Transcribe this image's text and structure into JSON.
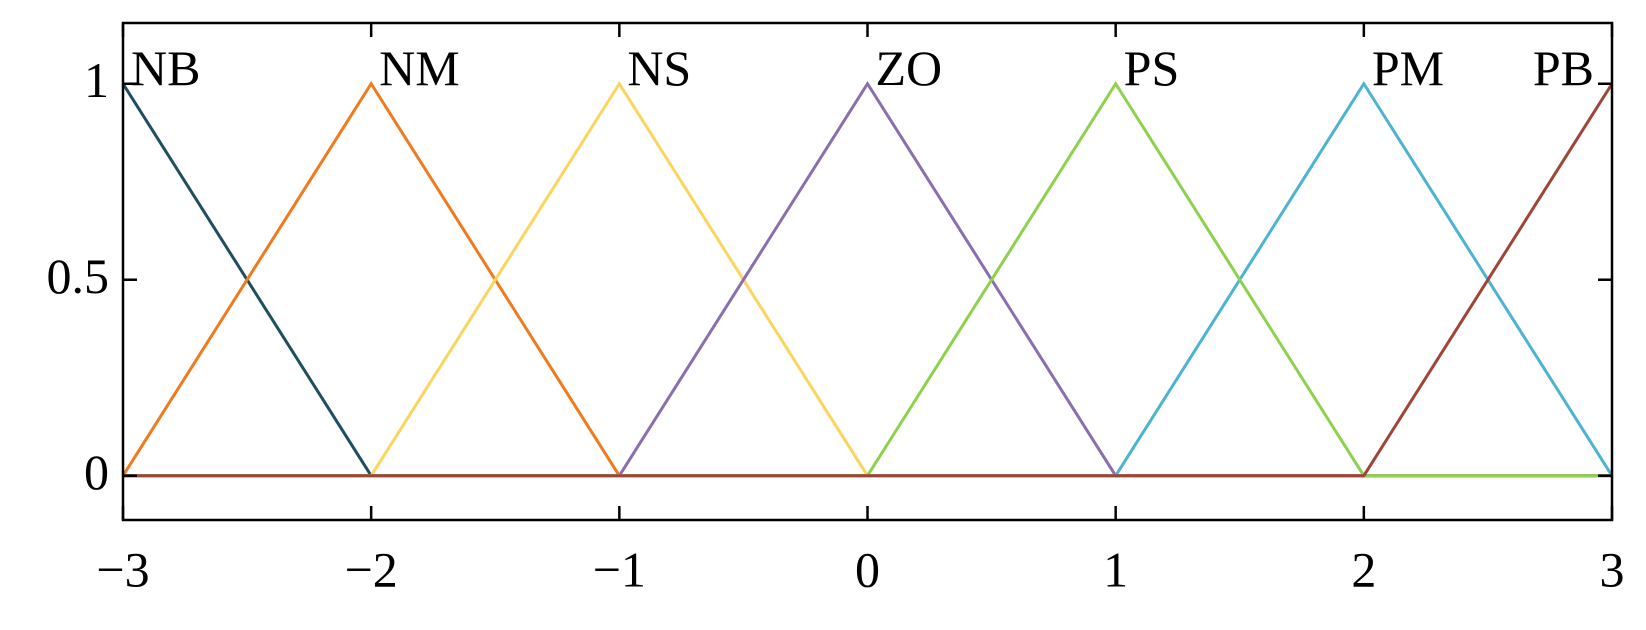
{
  "chart_data": {
    "type": "line",
    "series": [
      {
        "name": "NB",
        "color": "#1f4e5f",
        "x": [
          -3,
          -2,
          3
        ],
        "values": [
          1,
          0,
          0
        ]
      },
      {
        "name": "NM",
        "color": "#f07a1e",
        "x": [
          -3,
          -2,
          -1,
          3
        ],
        "values": [
          0,
          1,
          0,
          0
        ]
      },
      {
        "name": "NS",
        "color": "#fcd55e",
        "x": [
          -3,
          -2,
          -1,
          0,
          3
        ],
        "values": [
          0,
          0,
          1,
          0,
          0
        ]
      },
      {
        "name": "ZO",
        "color": "#8a6eae",
        "x": [
          -3,
          -1,
          0,
          1,
          3
        ],
        "values": [
          0,
          0,
          1,
          0,
          0
        ]
      },
      {
        "name": "PM",
        "color": "#4db3d1",
        "x": [
          -3,
          1,
          2,
          3
        ],
        "values": [
          0,
          0,
          1,
          0
        ]
      },
      {
        "name": "PS",
        "color": "#8fd14f",
        "x": [
          -3,
          0,
          1,
          2,
          3
        ],
        "values": [
          0,
          0,
          1,
          0,
          0
        ]
      },
      {
        "name": "PB",
        "color": "#a04438",
        "x": [
          -3,
          2,
          3
        ],
        "values": [
          0,
          0,
          1
        ]
      }
    ],
    "xlim": [
      -3,
      3
    ],
    "ylim": [
      -0.113,
      1.155
    ],
    "xticks": [
      {
        "value": -3,
        "label": "−3"
      },
      {
        "value": -2,
        "label": "−2"
      },
      {
        "value": -1,
        "label": "−1"
      },
      0,
      1,
      2,
      3
    ],
    "yticks": [
      0,
      0.5,
      1
    ]
  }
}
